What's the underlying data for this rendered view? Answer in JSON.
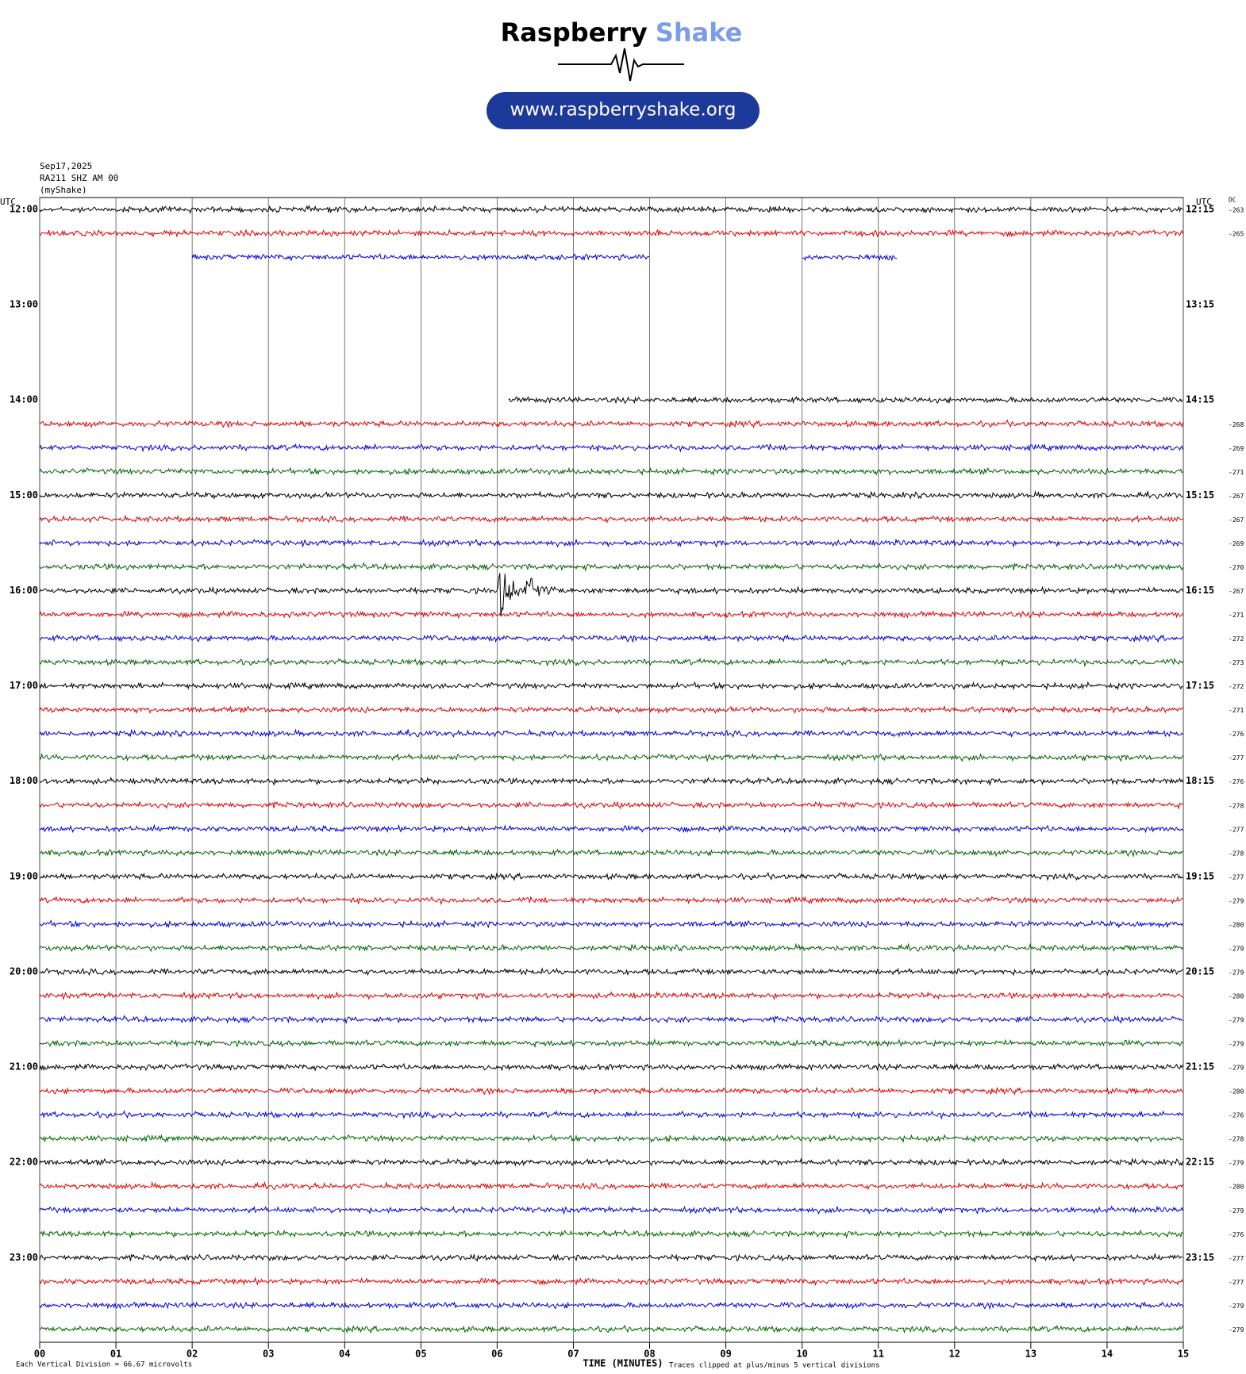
{
  "logo": {
    "name": "Raspberry",
    "accent": "Shake",
    "url": "www.raspberryshake.org"
  },
  "chart_data": {
    "type": "helicorder",
    "date": "Sep17,2025",
    "station": "RA211 SHZ AM 00",
    "source": "(myShake)",
    "utc_left": "UTC",
    "utc_right": "UTC",
    "dc_title": "DC",
    "left_labels": [
      "12:00",
      "13:00",
      "14:00",
      "15:00",
      "16:00",
      "17:00",
      "18:00",
      "19:00",
      "20:00",
      "21:00",
      "22:00",
      "23:00"
    ],
    "right_labels": [
      "12:15",
      "13:15",
      "14:15",
      "15:15",
      "16:15",
      "17:15",
      "18:15",
      "19:15",
      "20:15",
      "21:15",
      "22:15",
      "23:15"
    ],
    "colors": [
      "#000000",
      "#e00000",
      "#0000d8",
      "#006400"
    ],
    "rows": [
      {
        "dc": -263,
        "segments": [
          [
            0,
            15
          ]
        ]
      },
      {
        "dc": -265,
        "segments": [
          [
            0,
            15
          ]
        ]
      },
      {
        "dc": null,
        "segments": [
          [
            2,
            8
          ],
          [
            10,
            11.25
          ]
        ]
      },
      {
        "dc": null,
        "segments": []
      },
      {
        "dc": null,
        "segments": []
      },
      {
        "dc": null,
        "segments": []
      },
      {
        "dc": null,
        "segments": []
      },
      {
        "dc": null,
        "segments": []
      },
      {
        "dc": null,
        "segments": [
          [
            6.15,
            15
          ]
        ]
      },
      {
        "dc": -268,
        "segments": [
          [
            0,
            15
          ]
        ]
      },
      {
        "dc": -269,
        "segments": [
          [
            0,
            15
          ]
        ]
      },
      {
        "dc": -271,
        "segments": [
          [
            0,
            15
          ]
        ]
      },
      {
        "dc": -267,
        "segments": [
          [
            0,
            15
          ]
        ]
      },
      {
        "dc": -267,
        "segments": [
          [
            0,
            15
          ]
        ]
      },
      {
        "dc": -269,
        "segments": [
          [
            0,
            15
          ]
        ]
      },
      {
        "dc": -270,
        "segments": [
          [
            0,
            15
          ]
        ]
      },
      {
        "dc": -267,
        "segments": [
          [
            0,
            15
          ]
        ]
      },
      {
        "dc": -271,
        "segments": [
          [
            0,
            15
          ]
        ]
      },
      {
        "dc": -272,
        "segments": [
          [
            0,
            15
          ]
        ]
      },
      {
        "dc": -273,
        "segments": [
          [
            0,
            15
          ]
        ]
      },
      {
        "dc": -272,
        "segments": [
          [
            0,
            15
          ]
        ]
      },
      {
        "dc": -271,
        "segments": [
          [
            0,
            15
          ]
        ]
      },
      {
        "dc": -276,
        "segments": [
          [
            0,
            15
          ]
        ]
      },
      {
        "dc": -277,
        "segments": [
          [
            0,
            15
          ]
        ]
      },
      {
        "dc": -276,
        "segments": [
          [
            0,
            15
          ]
        ]
      },
      {
        "dc": -278,
        "segments": [
          [
            0,
            15
          ]
        ]
      },
      {
        "dc": -277,
        "segments": [
          [
            0,
            15
          ]
        ]
      },
      {
        "dc": -278,
        "segments": [
          [
            0,
            15
          ]
        ]
      },
      {
        "dc": -277,
        "segments": [
          [
            0,
            15
          ]
        ]
      },
      {
        "dc": -279,
        "segments": [
          [
            0,
            15
          ]
        ]
      },
      {
        "dc": -280,
        "segments": [
          [
            0,
            15
          ]
        ]
      },
      {
        "dc": -279,
        "segments": [
          [
            0,
            15
          ]
        ]
      },
      {
        "dc": -279,
        "segments": [
          [
            0,
            15
          ]
        ]
      },
      {
        "dc": -280,
        "segments": [
          [
            0,
            15
          ]
        ]
      },
      {
        "dc": -279,
        "segments": [
          [
            0,
            15
          ]
        ]
      },
      {
        "dc": -279,
        "segments": [
          [
            0,
            15
          ]
        ]
      },
      {
        "dc": -279,
        "segments": [
          [
            0,
            15
          ]
        ]
      },
      {
        "dc": -280,
        "segments": [
          [
            0,
            15
          ]
        ]
      },
      {
        "dc": -276,
        "segments": [
          [
            0,
            15
          ]
        ]
      },
      {
        "dc": -278,
        "segments": [
          [
            0,
            15
          ]
        ]
      },
      {
        "dc": -279,
        "segments": [
          [
            0,
            15
          ]
        ]
      },
      {
        "dc": -280,
        "segments": [
          [
            0,
            15
          ]
        ]
      },
      {
        "dc": -279,
        "segments": [
          [
            0,
            15
          ]
        ]
      },
      {
        "dc": -276,
        "segments": [
          [
            0,
            15
          ]
        ]
      },
      {
        "dc": -277,
        "segments": [
          [
            0,
            15
          ]
        ]
      },
      {
        "dc": -277,
        "segments": [
          [
            0,
            15
          ]
        ]
      },
      {
        "dc": -279,
        "segments": [
          [
            0,
            15
          ]
        ]
      },
      {
        "dc": -279,
        "segments": [
          [
            0,
            15
          ]
        ]
      }
    ],
    "events": [
      {
        "row": 16,
        "minute": 6.02
      },
      {
        "row": 16,
        "minute": 6.35
      }
    ],
    "xlim": [
      0,
      15
    ],
    "xticks": [
      {
        "value": 0,
        "label": "00"
      },
      {
        "value": 1,
        "label": "01"
      },
      {
        "value": 2,
        "label": "02"
      },
      {
        "value": 3,
        "label": "03"
      },
      {
        "value": 4,
        "label": "04"
      },
      {
        "value": 5,
        "label": "05"
      },
      {
        "value": 6,
        "label": "06"
      },
      {
        "value": 7,
        "label": "07"
      },
      {
        "value": 8,
        "label": "08"
      },
      {
        "value": 9,
        "label": "09"
      },
      {
        "value": 10,
        "label": "10"
      },
      {
        "value": 11,
        "label": "11"
      },
      {
        "value": 12,
        "label": "12"
      },
      {
        "value": 13,
        "label": "13"
      },
      {
        "value": 14,
        "label": "14"
      },
      {
        "value": 15,
        "label": "15"
      }
    ],
    "xlabel": "TIME (MINUTES)",
    "scale_note": "Each Vertical Division =   66.67 microvolts",
    "clip_note": "Traces clipped at plus/minus 5 vertical divisions",
    "grid": true
  }
}
